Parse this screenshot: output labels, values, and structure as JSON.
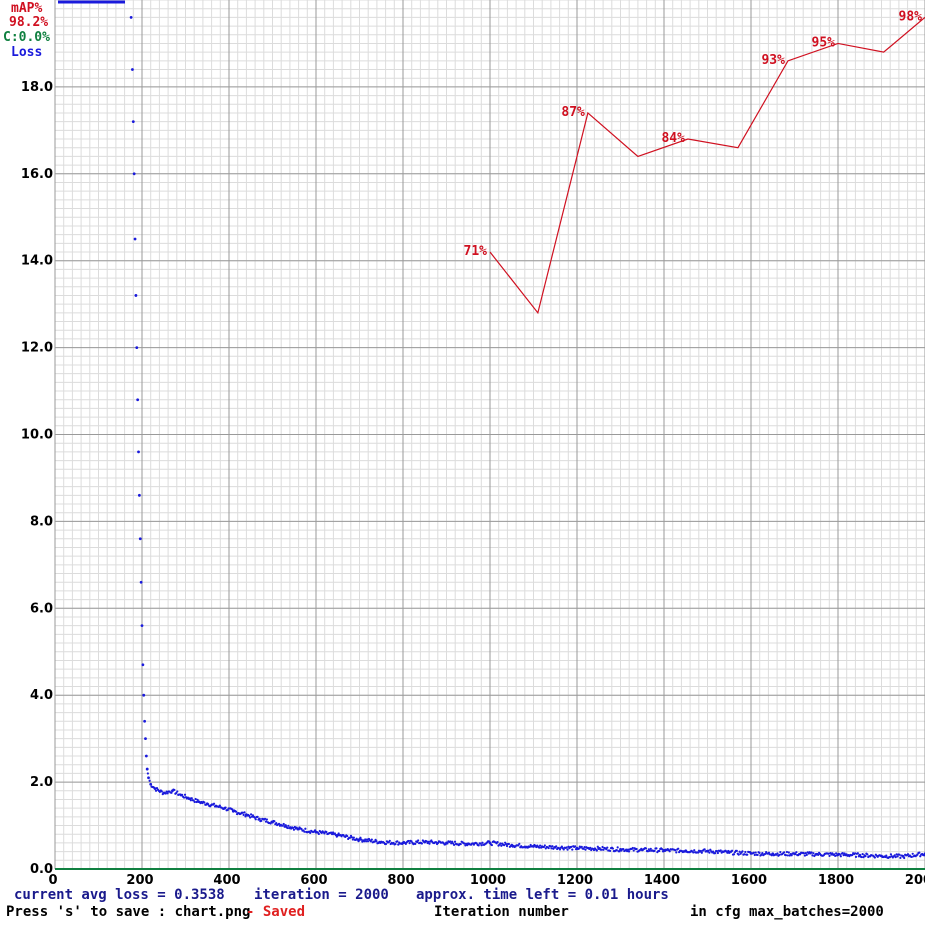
{
  "legend": {
    "map_label": "mAP%",
    "map_value": "98.2%",
    "conf_label": "C:0.0%",
    "loss_label": "Loss"
  },
  "footer": {
    "avg_loss": "current avg loss = 0.3538",
    "iteration": "iteration = 2000",
    "time_left": "approx. time left = 0.01 hours",
    "save_hint": "Press 's' to save : chart.png",
    "saved": "- Saved",
    "xlabel": "Iteration number",
    "max_batches": "in cfg max_batches=2000"
  },
  "colors": {
    "loss": "#1a1adc",
    "map": "#d01020",
    "conf": "#108040",
    "grid_major": "#9a9a9a",
    "grid_minor": "#dcdcdc"
  },
  "chart_data": {
    "type": "line",
    "xlim": [
      0,
      2000
    ],
    "ylim": [
      0,
      20
    ],
    "x_ticks": [
      "0",
      "200",
      "400",
      "600",
      "800",
      "1000",
      "1200",
      "1400",
      "1600",
      "1800",
      "2000"
    ],
    "y_ticks": [
      "0.0",
      "2.0",
      "4.0",
      "6.0",
      "8.0",
      "10.0",
      "12.0",
      "14.0",
      "16.0",
      "18.0"
    ],
    "series": [
      {
        "name": "Loss",
        "x": [
          175,
          178,
          180,
          182,
          184,
          186,
          188,
          190,
          192,
          194,
          196,
          198,
          200,
          202,
          204,
          206,
          208,
          210,
          212,
          215,
          220,
          230,
          250,
          270,
          290,
          310,
          330,
          350,
          370,
          390,
          410,
          440,
          470,
          500,
          530,
          560,
          600,
          650,
          700,
          750,
          800,
          850,
          900,
          950,
          1000,
          1050,
          1100,
          1150,
          1200,
          1250,
          1300,
          1350,
          1400,
          1450,
          1500,
          1550,
          1600,
          1650,
          1700,
          1750,
          1800,
          1850,
          1900,
          1950,
          2000
        ],
        "y": [
          19.6,
          18.4,
          17.2,
          16.0,
          14.5,
          13.2,
          12.0,
          10.8,
          9.6,
          8.6,
          7.6,
          6.6,
          5.6,
          4.7,
          4.0,
          3.4,
          3.0,
          2.6,
          2.3,
          2.1,
          1.95,
          1.85,
          1.75,
          1.8,
          1.7,
          1.62,
          1.55,
          1.5,
          1.45,
          1.4,
          1.33,
          1.25,
          1.15,
          1.08,
          1.0,
          0.92,
          0.85,
          0.78,
          0.68,
          0.62,
          0.6,
          0.62,
          0.6,
          0.58,
          0.6,
          0.55,
          0.52,
          0.5,
          0.48,
          0.47,
          0.45,
          0.44,
          0.43,
          0.42,
          0.41,
          0.38,
          0.36,
          0.35,
          0.35,
          0.34,
          0.33,
          0.32,
          0.3,
          0.29,
          0.35
        ]
      },
      {
        "name": "mAP%",
        "x": [
          1000,
          1110,
          1225,
          1340,
          1455,
          1570,
          1685,
          1800,
          1905,
          2000
        ],
        "y": [
          71,
          64,
          87,
          82,
          84,
          83,
          93,
          95,
          94,
          98
        ],
        "labels": [
          {
            "x": 1000,
            "y": 71,
            "text": "71%"
          },
          {
            "x": 1225,
            "y": 87,
            "text": "87%"
          },
          {
            "x": 1455,
            "y": 84,
            "text": "84%"
          },
          {
            "x": 1685,
            "y": 93,
            "text": "93%"
          },
          {
            "x": 1800,
            "y": 95,
            "text": "95%"
          },
          {
            "x": 2000,
            "y": 98,
            "text": "98%"
          }
        ]
      }
    ]
  }
}
